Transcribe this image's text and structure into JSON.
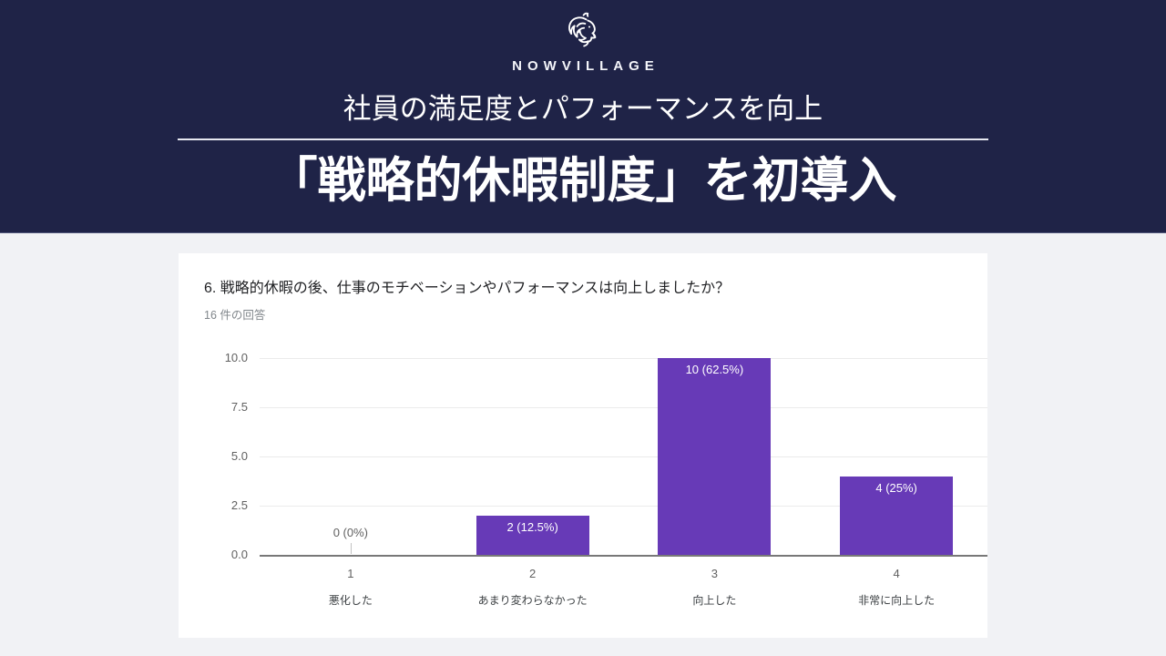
{
  "colors": {
    "navy": "#1f2347",
    "page_bg": "#f1f2f5",
    "accent_purple": "#673ab7"
  },
  "brand": {
    "name": "NOWVILLAGE",
    "logo": "lion-icon"
  },
  "header": {
    "subtitle": "社員の満足度とパフォーマンスを向上",
    "title": "「戦略的休暇制度」を初導入"
  },
  "chart_data": {
    "type": "bar",
    "title": "6. 戦略的休暇の後、仕事のモチベーションやパフォーマンスは向上しましたか？",
    "subtitle": "16 件の回答",
    "categories": [
      "1",
      "2",
      "3",
      "4"
    ],
    "category_labels": [
      "悪化した",
      "あまり変わらなかった",
      "向上した",
      "非常に向上した"
    ],
    "values": [
      0,
      2,
      10,
      4
    ],
    "value_labels": [
      "0 (0%)",
      "2 (12.5%)",
      "10 (62.5%)",
      "4 (25%)"
    ],
    "ylim": [
      0,
      10
    ],
    "yticks": [
      0.0,
      2.5,
      5.0,
      7.5,
      10.0
    ],
    "ytick_labels": [
      "0.0",
      "2.5",
      "5.0",
      "7.5",
      "10.0"
    ],
    "bar_color": "#673ab7",
    "grid": true,
    "legend": "none"
  }
}
